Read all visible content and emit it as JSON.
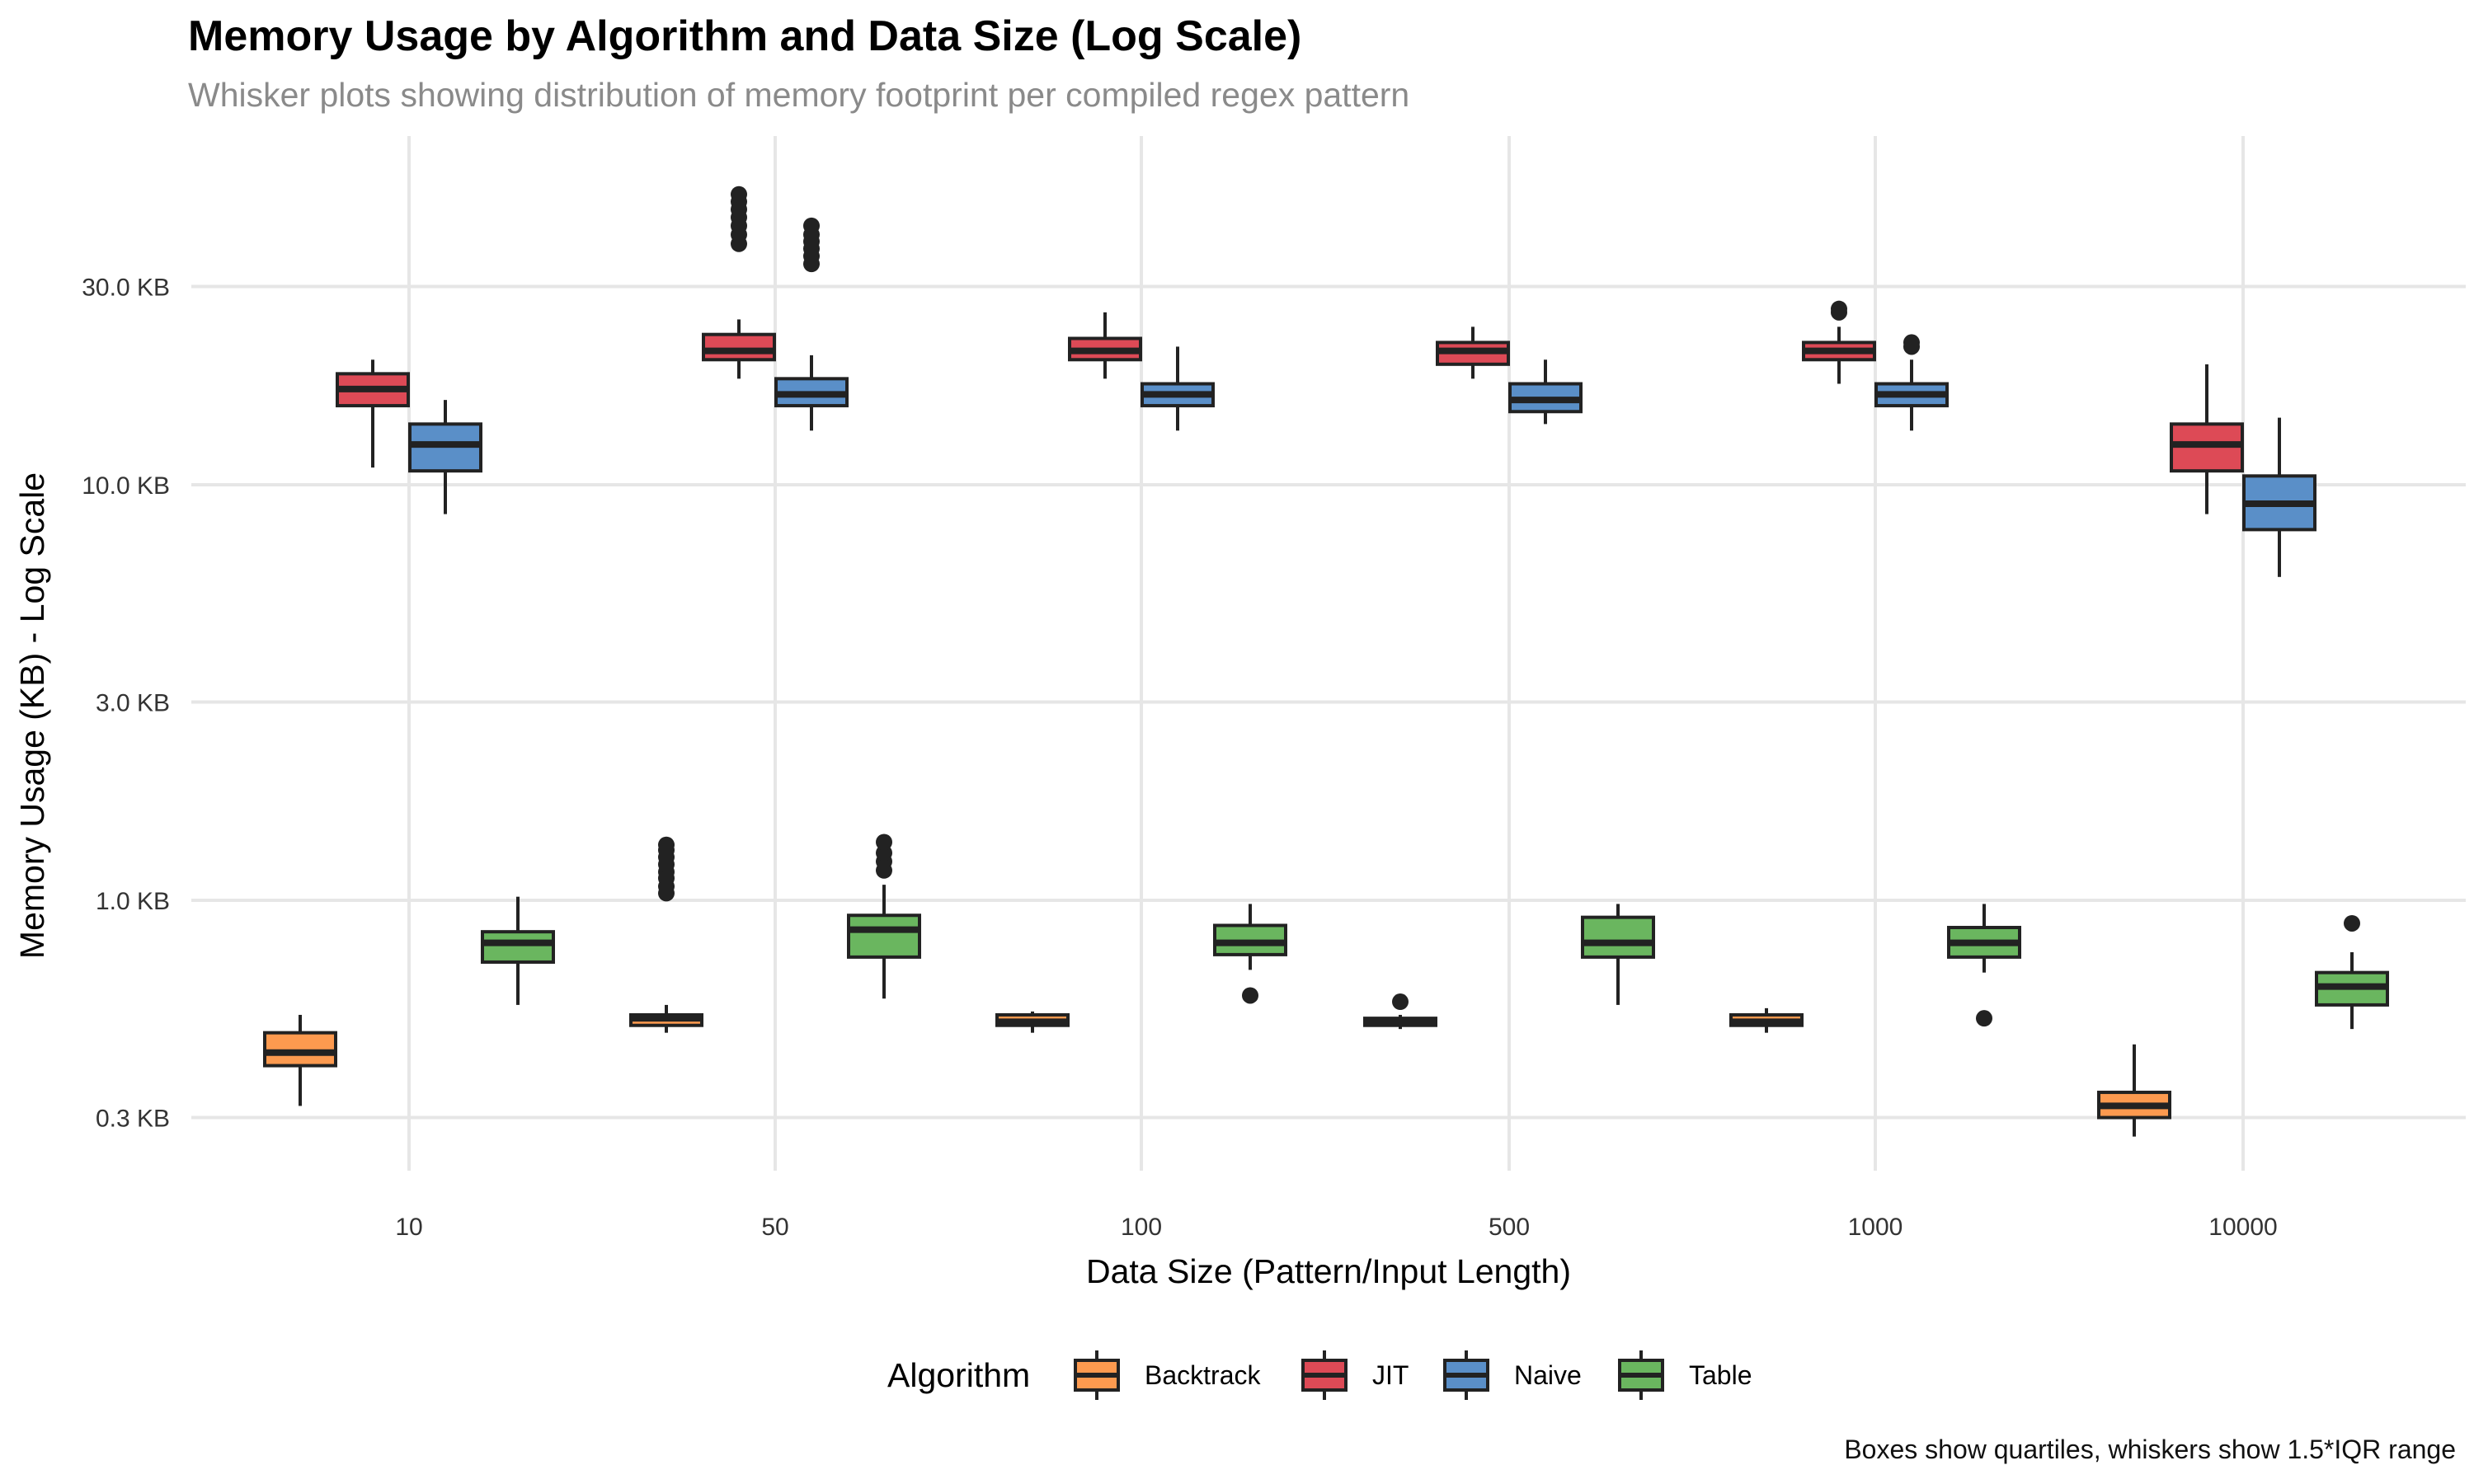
{
  "chart_data": {
    "type": "box",
    "title": "Memory Usage by Algorithm and Data Size (Log Scale)",
    "subtitle": "Whisker plots showing distribution of memory footprint per compiled regex pattern",
    "caption": "Boxes show quartiles, whiskers show 1.5*IQR range",
    "xlabel": "Data Size (Pattern/Input Length)",
    "ylabel": "Memory Usage (KB) - Log Scale",
    "y_scale": "log",
    "ylim": [
      0.2,
      60
    ],
    "grid": true,
    "categories": [
      "10",
      "50",
      "100",
      "500",
      "1000",
      "10000"
    ],
    "yticks": [
      0.3,
      1.0,
      3.0,
      10.0,
      30.0
    ],
    "ytick_labels": [
      "0.3 KB",
      "1.0 KB",
      "3.0 KB",
      "10.0 KB",
      "30.0 KB"
    ],
    "legend": {
      "title": "Algorithm",
      "position": "bottom"
    },
    "series": [
      {
        "name": "Backtrack",
        "color": "#FD9A4F",
        "boxes": [
          {
            "category": "10",
            "min": 0.32,
            "q1": 0.4,
            "median": 0.43,
            "q3": 0.48,
            "max": 0.53,
            "outliers": []
          },
          {
            "category": "50",
            "min": 0.48,
            "q1": 0.5,
            "median": 0.52,
            "q3": 0.53,
            "max": 0.56,
            "outliers": [
              1.04,
              1.08,
              1.13,
              1.17,
              1.22,
              1.27,
              1.32,
              1.36
            ]
          },
          {
            "category": "100",
            "min": 0.48,
            "q1": 0.5,
            "median": 0.51,
            "q3": 0.53,
            "max": 0.54,
            "outliers": []
          },
          {
            "category": "500",
            "min": 0.49,
            "q1": 0.5,
            "median": 0.51,
            "q3": 0.52,
            "max": 0.53,
            "outliers": [
              0.57
            ]
          },
          {
            "category": "1000",
            "min": 0.48,
            "q1": 0.5,
            "median": 0.51,
            "q3": 0.53,
            "max": 0.55,
            "outliers": []
          },
          {
            "category": "10000",
            "min": 0.27,
            "q1": 0.3,
            "median": 0.32,
            "q3": 0.345,
            "max": 0.45,
            "outliers": []
          }
        ]
      },
      {
        "name": "JIT",
        "color": "#DD4A56",
        "boxes": [
          {
            "category": "10",
            "min": 11.0,
            "q1": 15.5,
            "median": 17.0,
            "q3": 18.5,
            "max": 20.0,
            "outliers": []
          },
          {
            "category": "50",
            "min": 18.0,
            "q1": 20.0,
            "median": 21.0,
            "q3": 23.0,
            "max": 25.0,
            "outliers": [
              38.0,
              40.0,
              42.0,
              44.0,
              46.0,
              48.0,
              50.0
            ]
          },
          {
            "category": "100",
            "min": 18.0,
            "q1": 20.0,
            "median": 21.0,
            "q3": 22.5,
            "max": 26.0,
            "outliers": []
          },
          {
            "category": "500",
            "min": 18.0,
            "q1": 19.5,
            "median": 21.0,
            "q3": 22.0,
            "max": 24.0,
            "outliers": []
          },
          {
            "category": "1000",
            "min": 17.5,
            "q1": 20.0,
            "median": 21.0,
            "q3": 22.0,
            "max": 24.0,
            "outliers": [
              26.0,
              26.5
            ]
          },
          {
            "category": "10000",
            "min": 8.5,
            "q1": 10.8,
            "median": 12.5,
            "q3": 14.0,
            "max": 19.5,
            "outliers": []
          }
        ]
      },
      {
        "name": "Naive",
        "color": "#5A8FC8",
        "boxes": [
          {
            "category": "10",
            "min": 8.5,
            "q1": 10.8,
            "median": 12.5,
            "q3": 14.0,
            "max": 16.0,
            "outliers": []
          },
          {
            "category": "50",
            "min": 13.5,
            "q1": 15.5,
            "median": 16.5,
            "q3": 18.0,
            "max": 20.5,
            "outliers": [
              34.0,
              35.5,
              37.0,
              38.5,
              40.0,
              42.0
            ]
          },
          {
            "category": "100",
            "min": 13.5,
            "q1": 15.5,
            "median": 16.5,
            "q3": 17.5,
            "max": 21.5,
            "outliers": []
          },
          {
            "category": "500",
            "min": 14.0,
            "q1": 15.0,
            "median": 16.0,
            "q3": 17.5,
            "max": 20.0,
            "outliers": []
          },
          {
            "category": "1000",
            "min": 13.5,
            "q1": 15.5,
            "median": 16.5,
            "q3": 17.5,
            "max": 20.0,
            "outliers": [
              21.5,
              22.0
            ]
          },
          {
            "category": "10000",
            "min": 6.0,
            "q1": 7.8,
            "median": 9.0,
            "q3": 10.5,
            "max": 14.5,
            "outliers": []
          }
        ]
      },
      {
        "name": "Table",
        "color": "#6AB65F",
        "boxes": [
          {
            "category": "10",
            "min": 0.56,
            "q1": 0.71,
            "median": 0.79,
            "q3": 0.84,
            "max": 1.02,
            "outliers": []
          },
          {
            "category": "50",
            "min": 0.58,
            "q1": 0.73,
            "median": 0.85,
            "q3": 0.92,
            "max": 1.09,
            "outliers": [
              1.18,
              1.24,
              1.3,
              1.38
            ]
          },
          {
            "category": "100",
            "min": 0.68,
            "q1": 0.74,
            "median": 0.79,
            "q3": 0.87,
            "max": 0.98,
            "outliers": [
              0.59
            ]
          },
          {
            "category": "500",
            "min": 0.56,
            "q1": 0.73,
            "median": 0.79,
            "q3": 0.91,
            "max": 0.98,
            "outliers": []
          },
          {
            "category": "1000",
            "min": 0.67,
            "q1": 0.73,
            "median": 0.79,
            "q3": 0.86,
            "max": 0.98,
            "outliers": [
              0.52
            ]
          },
          {
            "category": "10000",
            "min": 0.49,
            "q1": 0.56,
            "median": 0.62,
            "q3": 0.67,
            "max": 0.75,
            "outliers": [
              0.88
            ]
          }
        ]
      }
    ]
  }
}
